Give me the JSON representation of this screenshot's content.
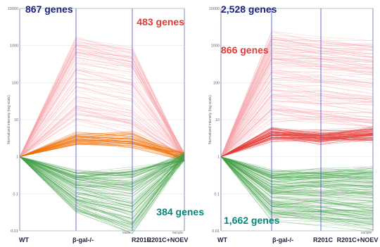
{
  "chart_data": [
    {
      "type": "line",
      "x": [
        "WT",
        "β-gal-/-",
        "R201C",
        "R201C+NOEV"
      ],
      "ylabel": "Normalized intensity (log scale)",
      "y_scale": "log",
      "ylim": [
        0.01,
        10000
      ],
      "yticks": [
        "10000",
        "1000",
        "100",
        "10",
        "1",
        "0.1",
        "0.01"
      ],
      "background_color": "#ffffff",
      "x_secondary_label": "Sample",
      "x_minor_label": "Mean",
      "annotations": [
        {
          "text": "867 genes",
          "color": "#1a237e"
        },
        {
          "text": "483 genes",
          "color": "#e53935"
        },
        {
          "text": "384 genes",
          "color": "#00897b"
        }
      ],
      "series": [
        {
          "group": "up-high",
          "color": "#f4a0a6",
          "line_count": 90,
          "values_approx": [
            [
              1,
              1500,
              700,
              1
            ],
            [
              1,
              8,
              4,
              1
            ]
          ]
        },
        {
          "group": "up-moderate",
          "color": "#ef6c00",
          "line_count": 60,
          "values_approx": [
            [
              1,
              2.5,
              2,
              1
            ],
            [
              1,
              4,
              4,
              1
            ]
          ]
        },
        {
          "group": "down",
          "color": "#43a047",
          "line_count": 120,
          "values_approx": [
            [
              1,
              0.35,
              0.4,
              1
            ],
            [
              1,
              0.04,
              0.01,
              1
            ]
          ]
        }
      ]
    },
    {
      "type": "line",
      "x": [
        "WT",
        "β-gal-/-",
        "R201C",
        "R201C+NOEV"
      ],
      "ylabel": "Normalized intensity (log scale)",
      "y_scale": "log",
      "ylim": [
        0.01,
        10000
      ],
      "yticks": [
        "10000",
        "1000",
        "100",
        "10",
        "1",
        "0.1",
        "0.01"
      ],
      "background_color": "#ffffff",
      "x_secondary_label": "Sample",
      "annotations": [
        {
          "text": "2,528 genes",
          "color": "#1a237e"
        },
        {
          "text": "866 genes",
          "color": "#e53935"
        },
        {
          "text": "1,662 genes",
          "color": "#00897b"
        }
      ],
      "series": [
        {
          "group": "up-high",
          "color": "#f4a0a6",
          "line_count": 120,
          "values_approx": [
            [
              1,
              2000,
              1500,
              1200
            ],
            [
              1,
              10,
              8,
              6
            ]
          ]
        },
        {
          "group": "up-moderate",
          "color": "#e53935",
          "line_count": 80,
          "values_approx": [
            [
              1,
              5,
              4,
              5
            ],
            [
              1,
              3,
              2.5,
              3
            ]
          ]
        },
        {
          "group": "down",
          "color": "#43a047",
          "line_count": 140,
          "values_approx": [
            [
              1,
              0.4,
              0.45,
              0.5
            ],
            [
              1,
              0.02,
              0.015,
              0.01
            ]
          ]
        }
      ]
    }
  ]
}
